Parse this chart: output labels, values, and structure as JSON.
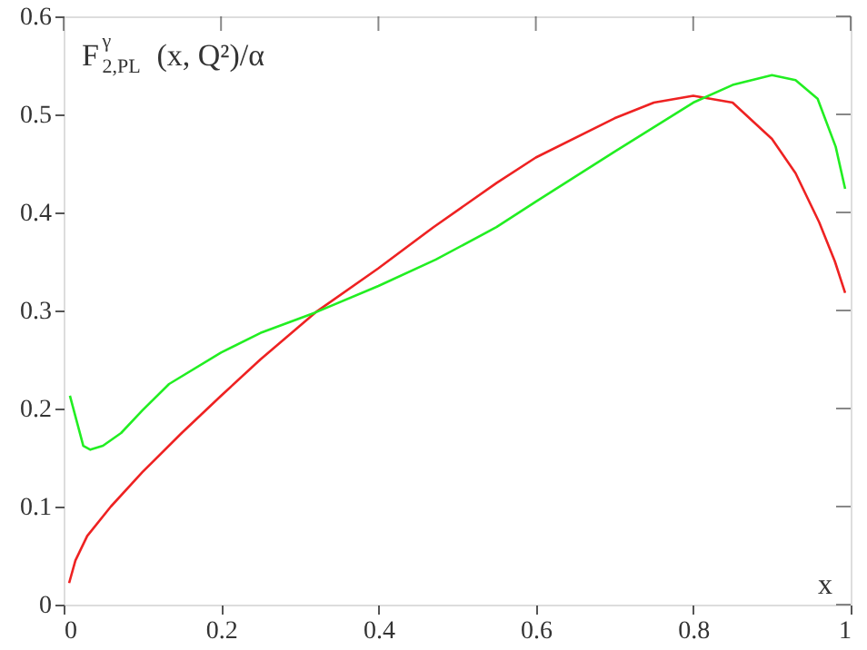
{
  "chart_data": {
    "type": "line",
    "xlabel": "x",
    "ylabel": "F$^{γ}$$_{2,PL}$ (x, Q²)/α",
    "xlim": [
      0,
      1
    ],
    "xticks": [
      0,
      0.2,
      0.4,
      0.6,
      0.8,
      1
    ],
    "ylim": [
      0,
      0.6
    ],
    "yticks": [
      0,
      0.1,
      0.2,
      0.3,
      0.4,
      0.5,
      0.6
    ],
    "grid": false,
    "marker": "none",
    "line_style": "solid",
    "series": [
      {
        "color": "#ee2222",
        "x": [
          0.007,
          0.015,
          0.03,
          0.06,
          0.1,
          0.15,
          0.2,
          0.25,
          0.32,
          0.4,
          0.47,
          0.55,
          0.6,
          0.7,
          0.75,
          0.8,
          0.85,
          0.9,
          0.93,
          0.96,
          0.98,
          0.993
        ],
        "values": [
          0.022,
          0.045,
          0.07,
          0.1,
          0.135,
          0.175,
          0.213,
          0.25,
          0.298,
          0.343,
          0.385,
          0.43,
          0.456,
          0.496,
          0.512,
          0.519,
          0.512,
          0.475,
          0.44,
          0.39,
          0.35,
          0.318
        ]
      },
      {
        "color": "#22ee22",
        "x": [
          0.008,
          0.018,
          0.025,
          0.034,
          0.05,
          0.073,
          0.1,
          0.134,
          0.2,
          0.25,
          0.32,
          0.4,
          0.473,
          0.55,
          0.6,
          0.7,
          0.8,
          0.85,
          0.9,
          0.93,
          0.958,
          0.981,
          0.993
        ],
        "values": [
          0.213,
          0.183,
          0.162,
          0.158,
          0.162,
          0.175,
          0.198,
          0.225,
          0.257,
          0.277,
          0.298,
          0.325,
          0.352,
          0.385,
          0.411,
          0.462,
          0.512,
          0.53,
          0.54,
          0.535,
          0.516,
          0.467,
          0.424
        ]
      }
    ]
  }
}
